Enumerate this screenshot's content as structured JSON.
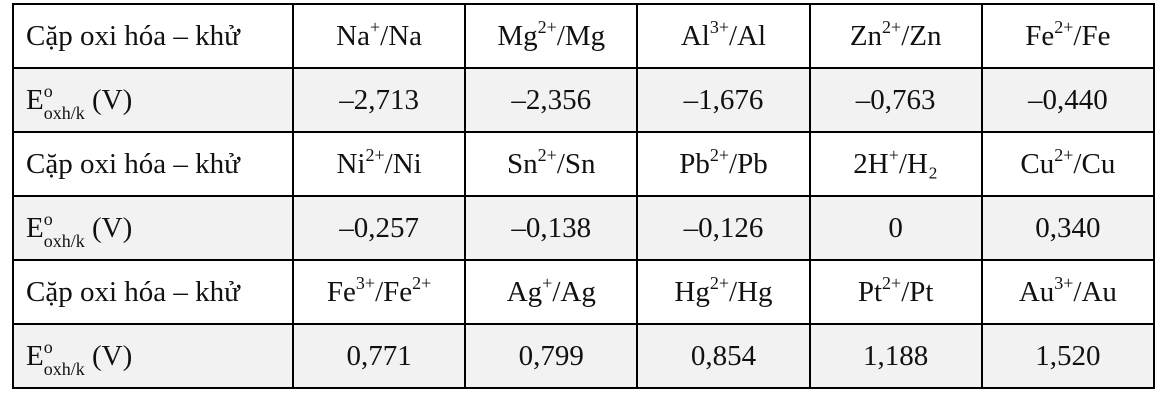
{
  "table": {
    "rows": [
      [
        [
          {
            "text": "Cặp oxi hóa – khử"
          }
        ],
        [
          {
            "text": "Na"
          },
          {
            "text": "+",
            "style": "sup"
          },
          {
            "text": "/Na"
          }
        ],
        [
          {
            "text": "Mg"
          },
          {
            "text": "2+",
            "style": "sup"
          },
          {
            "text": "/Mg"
          }
        ],
        [
          {
            "text": "Al"
          },
          {
            "text": "3+",
            "style": "sup"
          },
          {
            "text": "/Al"
          }
        ],
        [
          {
            "text": "Zn"
          },
          {
            "text": "2+",
            "style": "sup"
          },
          {
            "text": "/Zn"
          }
        ],
        [
          {
            "text": "Fe"
          },
          {
            "text": "2+",
            "style": "sup"
          },
          {
            "text": "/Fe"
          }
        ]
      ],
      [
        [
          {
            "text": "E"
          },
          {
            "text": "o",
            "style": "sup"
          },
          {
            "text": "oxh/k",
            "style": "sub"
          },
          {
            "text": " (V)"
          }
        ],
        [
          {
            "text": "–2,713"
          }
        ],
        [
          {
            "text": "–2,356"
          }
        ],
        [
          {
            "text": "–1,676"
          }
        ],
        [
          {
            "text": "–0,763"
          }
        ],
        [
          {
            "text": "–0,440"
          }
        ]
      ],
      [
        [
          {
            "text": "Cặp oxi hóa – khử"
          }
        ],
        [
          {
            "text": "Ni"
          },
          {
            "text": "2+",
            "style": "sup"
          },
          {
            "text": "/Ni"
          }
        ],
        [
          {
            "text": "Sn"
          },
          {
            "text": "2+",
            "style": "sup"
          },
          {
            "text": "/Sn"
          }
        ],
        [
          {
            "text": "Pb"
          },
          {
            "text": "2+",
            "style": "sup"
          },
          {
            "text": "/Pb"
          }
        ],
        [
          {
            "text": "2H"
          },
          {
            "text": "+",
            "style": "sup"
          },
          {
            "text": "/H₂"
          }
        ],
        [
          {
            "text": "Cu"
          },
          {
            "text": "2+",
            "style": "sup"
          },
          {
            "text": "/Cu"
          }
        ]
      ],
      [
        [
          {
            "text": "E"
          },
          {
            "text": "o",
            "style": "sup"
          },
          {
            "text": "oxh/k",
            "style": "sub"
          },
          {
            "text": " (V)"
          }
        ],
        [
          {
            "text": "–0,257"
          }
        ],
        [
          {
            "text": "–0,138"
          }
        ],
        [
          {
            "text": "–0,126"
          }
        ],
        [
          {
            "text": "0"
          }
        ],
        [
          {
            "text": "0,340"
          }
        ]
      ],
      [
        [
          {
            "text": "Cặp oxi hóa – khử"
          }
        ],
        [
          {
            "text": "Fe"
          },
          {
            "text": "3+",
            "style": "sup"
          },
          {
            "text": "/Fe"
          },
          {
            "text": "2+",
            "style": "sup"
          }
        ],
        [
          {
            "text": "Ag"
          },
          {
            "text": "+",
            "style": "sup"
          },
          {
            "text": "/Ag"
          }
        ],
        [
          {
            "text": "Hg"
          },
          {
            "text": "2+",
            "style": "sup"
          },
          {
            "text": "/Hg"
          }
        ],
        [
          {
            "text": "Pt"
          },
          {
            "text": "2+",
            "style": "sup"
          },
          {
            "text": "/Pt"
          }
        ],
        [
          {
            "text": "Au"
          },
          {
            "text": "3+",
            "style": "sup"
          },
          {
            "text": "/Au"
          }
        ]
      ],
      [
        [
          {
            "text": "E"
          },
          {
            "text": "o",
            "style": "sup"
          },
          {
            "text": "oxh/k",
            "style": "sub"
          },
          {
            "text": " (V)"
          }
        ],
        [
          {
            "text": "0,771"
          }
        ],
        [
          {
            "text": "0,799"
          }
        ],
        [
          {
            "text": "0,854"
          }
        ],
        [
          {
            "text": "1,188"
          }
        ],
        [
          {
            "text": "1,520"
          }
        ]
      ]
    ]
  }
}
